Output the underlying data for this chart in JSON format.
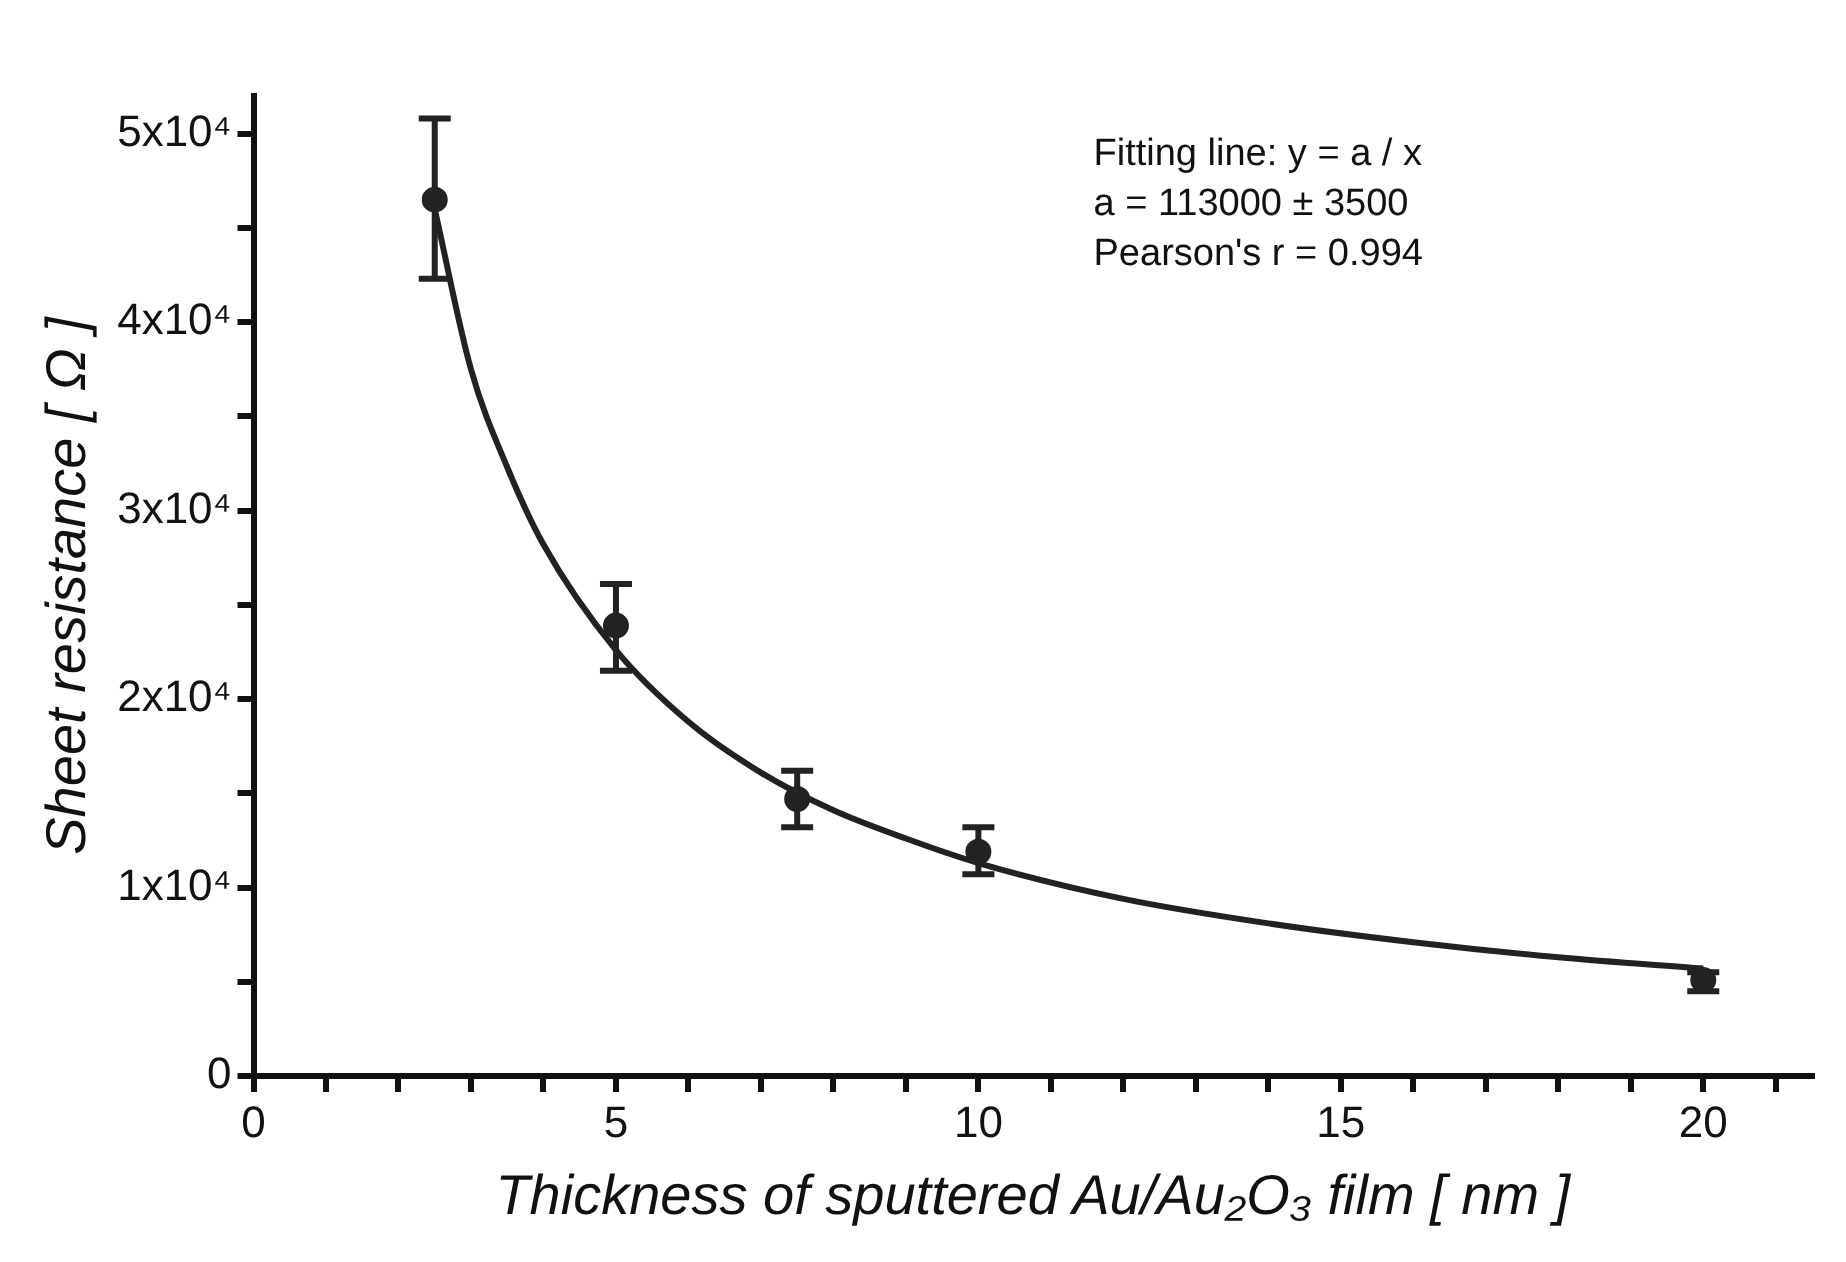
{
  "chart_data": {
    "type": "scatter",
    "xlabel": "Thickness of sputtered Au/Au₂O₃ film [ nm ]",
    "ylabel": "Sheet resistance [ Ω ]",
    "xlim": [
      0,
      21.5
    ],
    "xticks": [
      0,
      {
        "value": 1,
        "label": null
      },
      {
        "value": 2,
        "label": null
      },
      {
        "value": 3,
        "label": null
      },
      {
        "value": 4,
        "label": null
      },
      5,
      {
        "value": 6,
        "label": null
      },
      {
        "value": 7,
        "label": null
      },
      {
        "value": 8,
        "label": null
      },
      {
        "value": 9,
        "label": null
      },
      10,
      {
        "value": 11,
        "label": null
      },
      {
        "value": 12,
        "label": null
      },
      {
        "value": 13,
        "label": null
      },
      {
        "value": 14,
        "label": null
      },
      15,
      {
        "value": 16,
        "label": null
      },
      {
        "value": 17,
        "label": null
      },
      {
        "value": 18,
        "label": null
      },
      {
        "value": 19,
        "label": null
      },
      20,
      {
        "value": 21,
        "label": null
      }
    ],
    "ylim": [
      0,
      52000
    ],
    "yticks": [
      0,
      {
        "value": 5000,
        "label": null
      },
      {
        "value": 10000,
        "label": "1x10⁴"
      },
      {
        "value": 15000,
        "label": null
      },
      {
        "value": 20000,
        "label": "2x10⁴"
      },
      {
        "value": 25000,
        "label": null
      },
      {
        "value": 30000,
        "label": "3x10⁴"
      },
      {
        "value": 35000,
        "label": null
      },
      {
        "value": 40000,
        "label": "4x10⁴"
      },
      {
        "value": 45000,
        "label": null
      },
      {
        "value": 50000,
        "label": "5x10⁴"
      }
    ],
    "annotations": [
      "Fitting line: y = a / x",
      "a = 113000 ± 3500",
      "Pearson's r = 0.994"
    ],
    "series": [
      {
        "type": "scatter",
        "color": "#222222",
        "marker": "circle",
        "x": [
          2.5,
          5,
          7.5,
          10,
          20
        ],
        "values": [
          46500,
          23900,
          14700,
          11900,
          5100
        ],
        "errors": [
          [
            42300,
            50800
          ],
          [
            21500,
            26100
          ],
          [
            13200,
            16200
          ],
          [
            10700,
            13200
          ],
          [
            4500,
            5500
          ]
        ]
      },
      {
        "type": "line",
        "color": "#222222",
        "marker": "none",
        "line_style": "solid",
        "x": [
          2.5,
          3,
          3.5,
          4,
          5,
          6,
          7,
          8,
          9,
          10,
          12,
          14,
          16,
          18,
          20
        ],
        "values": [
          46000,
          37500,
          32300,
          28200,
          22600,
          18800,
          16100,
          14100,
          12600,
          11300,
          9400,
          8100,
          7100,
          6300,
          5700
        ]
      }
    ]
  }
}
